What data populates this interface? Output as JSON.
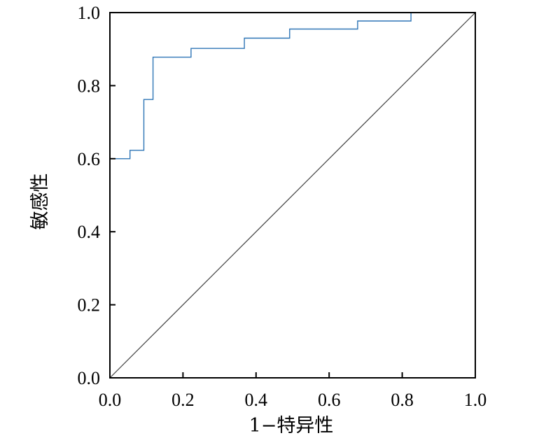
{
  "chart_data": {
    "type": "line",
    "title": "",
    "xlabel": "1−特异性",
    "ylabel": "敏感性",
    "xlim": [
      0,
      1
    ],
    "ylim": [
      0,
      1
    ],
    "grid": false,
    "x_ticks": [
      "0.0",
      "0.2",
      "0.4",
      "0.6",
      "0.8",
      "1.0"
    ],
    "y_ticks": [
      "0.0",
      "0.2",
      "0.4",
      "0.6",
      "0.8",
      "1.0"
    ],
    "series": [
      {
        "style": "step",
        "color": "#2e75b6",
        "points": [
          [
            0.0,
            0.0
          ],
          [
            0.0,
            0.6
          ],
          [
            0.055,
            0.6
          ],
          [
            0.055,
            0.623
          ],
          [
            0.093,
            0.623
          ],
          [
            0.093,
            0.762
          ],
          [
            0.118,
            0.762
          ],
          [
            0.118,
            0.878
          ],
          [
            0.222,
            0.878
          ],
          [
            0.222,
            0.902
          ],
          [
            0.368,
            0.902
          ],
          [
            0.368,
            0.93
          ],
          [
            0.492,
            0.93
          ],
          [
            0.492,
            0.955
          ],
          [
            0.678,
            0.955
          ],
          [
            0.678,
            0.977
          ],
          [
            0.824,
            0.977
          ],
          [
            0.824,
            1.0
          ],
          [
            1.0,
            1.0
          ]
        ]
      },
      {
        "style": "reference",
        "color": "#404040",
        "points": [
          [
            0,
            0
          ],
          [
            1,
            1
          ]
        ]
      }
    ]
  }
}
